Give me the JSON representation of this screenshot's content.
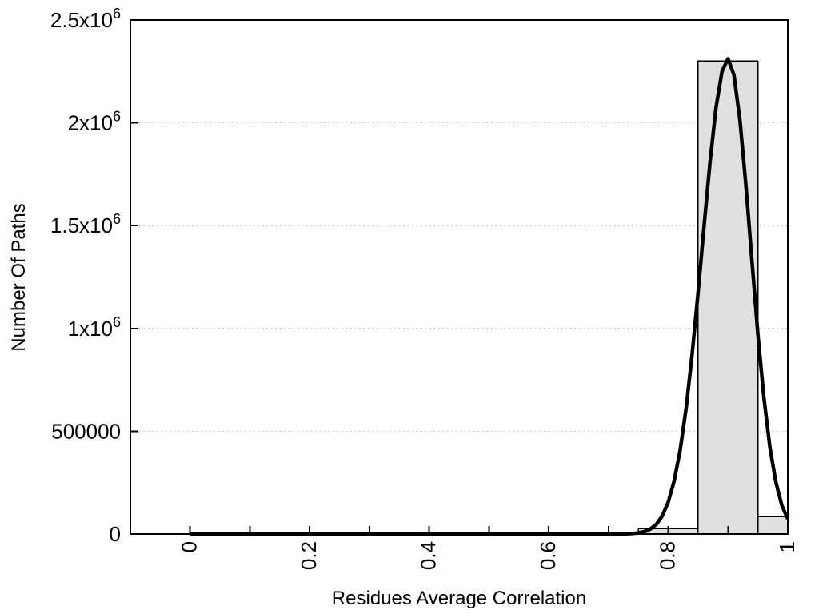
{
  "chart_data": {
    "type": "bar",
    "subtype": "histogram-with-fit-curve",
    "xlabel": "Residues Average Correlation",
    "ylabel": "Number Of Paths",
    "xlim": [
      -0.1,
      1.0
    ],
    "ylim": [
      0,
      2500000
    ],
    "grid": {
      "horizontal_dotted": true,
      "vertical": false,
      "color": "#b5b5b5"
    },
    "x_minor_tick_step": 0.1,
    "x_major_ticks": [
      {
        "value": 0,
        "label": "0"
      },
      {
        "value": 0.2,
        "label": "0.2"
      },
      {
        "value": 0.4,
        "label": "0.4"
      },
      {
        "value": 0.6,
        "label": "0.6"
      },
      {
        "value": 0.8,
        "label": "0.8"
      },
      {
        "value": 1,
        "label": "1"
      }
    ],
    "y_major_ticks": [
      {
        "value": 0,
        "label": "0"
      },
      {
        "value": 500000,
        "label": "500000"
      },
      {
        "value": 1000000,
        "label": "1x10^6"
      },
      {
        "value": 1500000,
        "label": "1.5x10^6"
      },
      {
        "value": 2000000,
        "label": "2x10^6"
      },
      {
        "value": 2500000,
        "label": "2.5x10^6"
      }
    ],
    "bars": [
      {
        "x_start": 0.75,
        "x_end": 0.85,
        "value": 27000
      },
      {
        "x_start": 0.85,
        "x_end": 0.95,
        "value": 2300000
      },
      {
        "x_start": 0.95,
        "x_end": 1.0,
        "value": 85000
      }
    ],
    "bar_style": {
      "fill": "#e0e0e0",
      "stroke": "#000000"
    },
    "fit_curve": {
      "shape": "split-gaussian",
      "amplitude": 2312000,
      "peak_x": 0.9,
      "sigma_left": 0.043,
      "sigma_right": 0.038,
      "x_range": [
        0,
        1.0
      ],
      "sample_step": 0.01,
      "color": "#000000",
      "stroke_width": 4.5
    },
    "frame_color": "#000000"
  }
}
